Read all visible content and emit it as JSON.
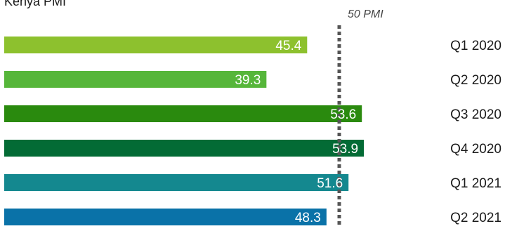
{
  "chart_data": {
    "type": "bar",
    "orientation": "horizontal",
    "title": "Kenya PMI",
    "categories": [
      "Q1 2020",
      "Q2 2020",
      "Q3 2020",
      "Q4 2020",
      "Q1 2021",
      "Q2 2021"
    ],
    "values": [
      45.4,
      39.3,
      53.6,
      53.9,
      51.6,
      48.3
    ],
    "bar_colors": [
      "#8dc12e",
      "#56b63a",
      "#2a8a0e",
      "#036b35",
      "#14888f",
      "#0a72a8"
    ],
    "value_label_color": "#ffffff",
    "xlim": [
      0,
      60
    ],
    "reference_line": {
      "value": 50,
      "label": "50 PMI",
      "style": "dotted",
      "color": "#555555"
    },
    "xlabel": "",
    "ylabel": "",
    "grid": false,
    "legend": "none"
  }
}
